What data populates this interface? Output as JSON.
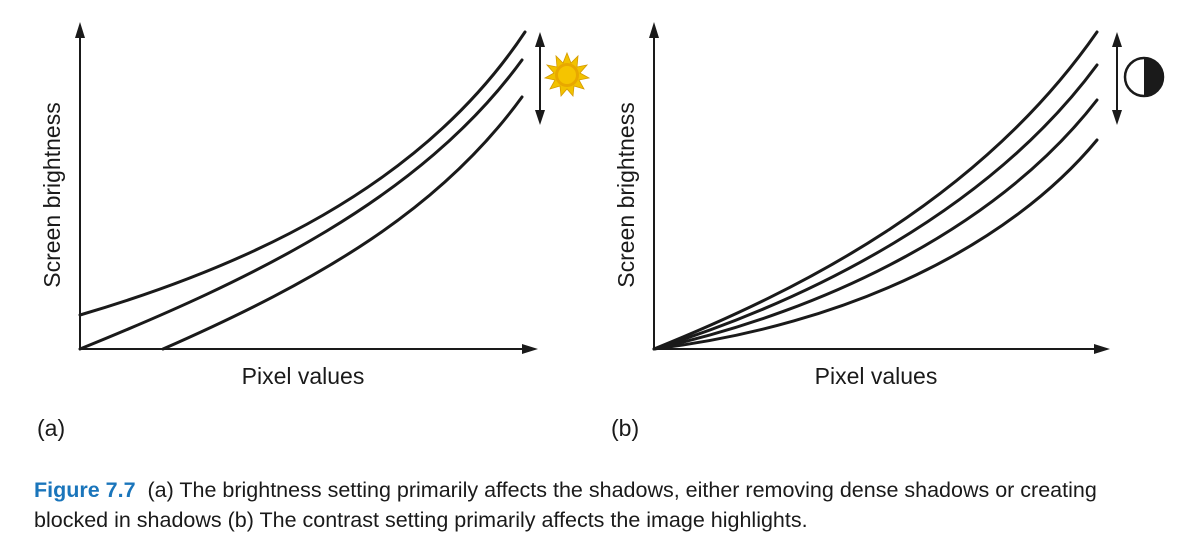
{
  "panel_a": {
    "y_axis_label": "Screen brightness",
    "x_axis_label": "Pixel values",
    "panel_label": "(a)",
    "control_icon": "sun-icon",
    "curve_count": 3
  },
  "panel_b": {
    "y_axis_label": "Screen brightness",
    "x_axis_label": "Pixel values",
    "panel_label": "(b)",
    "control_icon": "contrast-icon",
    "curve_count": 4
  },
  "caption": {
    "figure_number": "Figure 7.7",
    "text": "(a) The brightness setting primarily affects the shadows, either removing dense shadows or creating blocked in shadows (b) The contrast setting primarily affects the image highlights."
  },
  "colors": {
    "ink": "#1a1a1a",
    "caption_accent": "#1a75bb",
    "sun_fill": "#f2c200",
    "sun_center": "#e8a800"
  }
}
